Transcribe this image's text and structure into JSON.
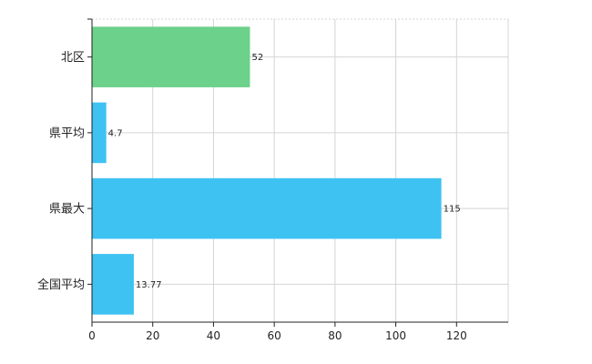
{
  "chart_data": {
    "type": "bar",
    "orientation": "horizontal",
    "categories": [
      "北区",
      "県平均",
      "県最大",
      "全国平均"
    ],
    "values": [
      52,
      4.7,
      115,
      13.77
    ],
    "value_labels": [
      "52",
      "4.7",
      "115",
      "13.77"
    ],
    "bar_colors": [
      "#6cd18a",
      "#3ec2f2",
      "#3ec2f2",
      "#3ec2f2"
    ],
    "xlim": [
      0,
      137
    ],
    "x_ticks": [
      0,
      20,
      40,
      60,
      80,
      100,
      120
    ],
    "x_tick_labels": [
      "0",
      "20",
      "40",
      "60",
      "80",
      "100",
      "120"
    ],
    "grid": true,
    "legend": "none",
    "title": "",
    "xlabel": "",
    "ylabel": ""
  }
}
